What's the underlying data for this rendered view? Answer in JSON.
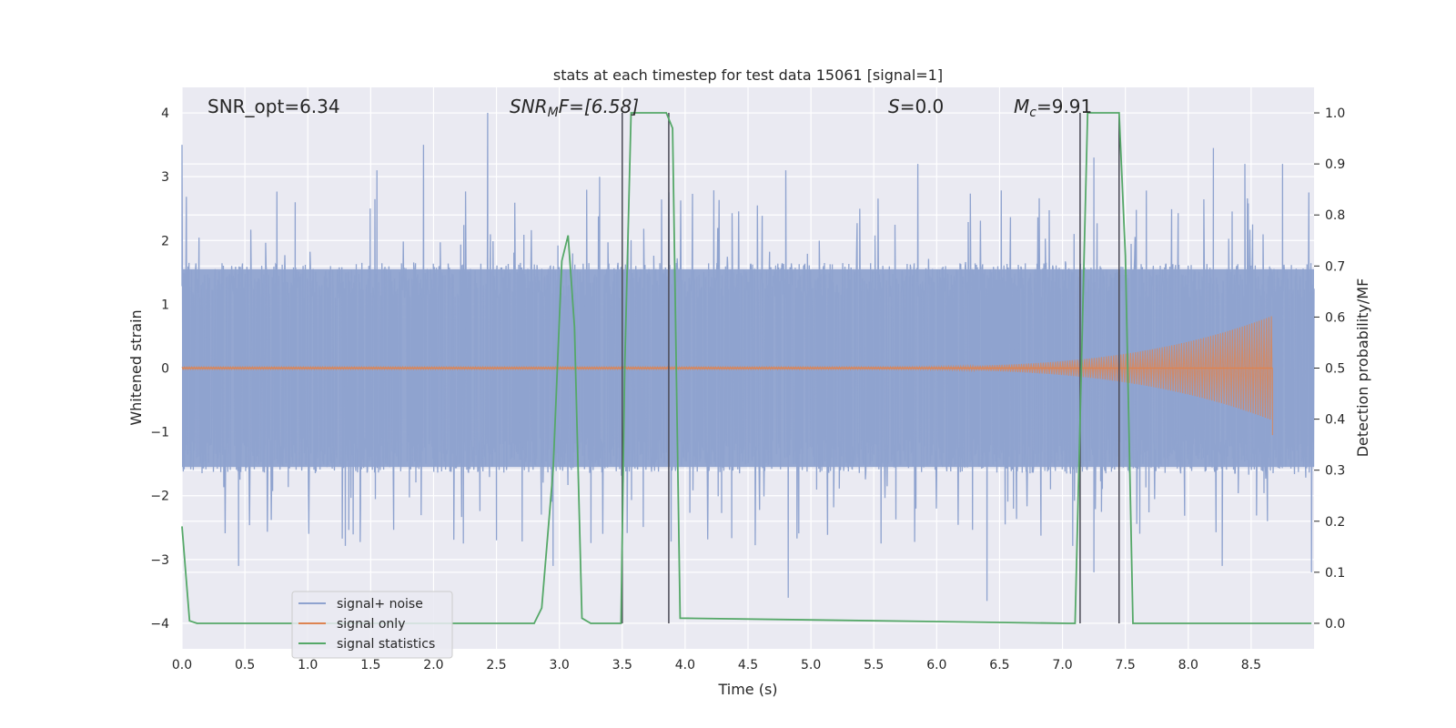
{
  "chart_data": {
    "type": "line",
    "title": "stats at each timestep for test data 15061 [signal=1]",
    "xlabel": "Time (s)",
    "ylabel_left": "Whitened strain",
    "ylabel_right": "Detection probability/MF",
    "xlim": [
      0.0,
      9.0
    ],
    "ylim_left": [
      -4.4,
      4.4
    ],
    "ylim_right": [
      -0.05,
      1.05
    ],
    "xticks": [
      "0.0",
      "0.5",
      "1.0",
      "1.5",
      "2.0",
      "2.5",
      "3.0",
      "3.5",
      "4.0",
      "4.5",
      "5.0",
      "5.5",
      "6.0",
      "6.5",
      "7.0",
      "7.5",
      "8.0",
      "8.5"
    ],
    "yticks_left": [
      "4",
      "3",
      "2",
      "1",
      "0",
      "−1",
      "−2",
      "−3",
      "−4"
    ],
    "yticks_right": [
      "1.0",
      "0.9",
      "0.8",
      "0.7",
      "0.6",
      "0.5",
      "0.4",
      "0.3",
      "0.2",
      "0.1",
      "0.0"
    ],
    "grid": true,
    "legend_position": "lower-left",
    "annotations": {
      "snr_opt": "SNR_opt=6.34",
      "snr_mf_name": "SNR",
      "snr_mf_sub": "M",
      "snr_mf_rest": "F=[6.58]",
      "s_name": "S",
      "s_rest": "=0.0",
      "mc_name": "M",
      "mc_sub": "c",
      "mc_rest": "=9.91"
    },
    "series": [
      {
        "name": "signal+ noise",
        "color": "#8fa3cf",
        "description_level": "noise band approx ±1.6 with spikes up to 4.0 and down to -3.65",
        "spikes_high": [
          [
            0.0,
            3.5
          ],
          [
            0.9,
            2.6
          ],
          [
            1.55,
            3.1
          ],
          [
            1.92,
            3.5
          ],
          [
            2.43,
            4.0
          ],
          [
            3.32,
            3.0
          ],
          [
            4.8,
            3.1
          ],
          [
            5.85,
            3.2
          ],
          [
            7.25,
            3.3
          ],
          [
            8.2,
            3.45
          ],
          [
            8.45,
            3.2
          ],
          [
            8.75,
            3.2
          ]
        ],
        "spikes_low": [
          [
            0.45,
            -3.1
          ],
          [
            2.5,
            -2.7
          ],
          [
            2.95,
            -3.1
          ],
          [
            4.82,
            -3.6
          ],
          [
            6.4,
            -3.65
          ],
          [
            7.25,
            -3.2
          ],
          [
            8.27,
            -3.1
          ],
          [
            8.98,
            -3.2
          ]
        ]
      },
      {
        "name": "signal only",
        "color": "#dd8452",
        "x_end": 8.67,
        "peak_amplitude": 0.8,
        "min_at_end": -1.05
      },
      {
        "name": "signal statistics",
        "color": "#55a868",
        "axis": "right",
        "x": [
          0.0,
          0.06,
          0.12,
          0.2,
          2.8,
          2.86,
          2.95,
          3.02,
          3.07,
          3.12,
          3.18,
          3.25,
          3.49,
          3.52,
          3.57,
          3.85,
          3.9,
          3.96,
          7.05,
          7.1,
          7.15,
          7.2,
          7.45,
          7.5,
          7.56,
          7.6,
          8.98
        ],
        "y": [
          0.19,
          0.005,
          0.0,
          0.0,
          0.0,
          0.03,
          0.3,
          0.71,
          0.76,
          0.58,
          0.01,
          0.0,
          0.0,
          0.5,
          1.0,
          1.0,
          0.97,
          0.01,
          0.0,
          0.0,
          0.5,
          1.0,
          1.0,
          0.72,
          0.0,
          0.0,
          0.0
        ]
      }
    ],
    "vlines": [
      3.5,
      3.87,
      7.14,
      7.45
    ]
  }
}
